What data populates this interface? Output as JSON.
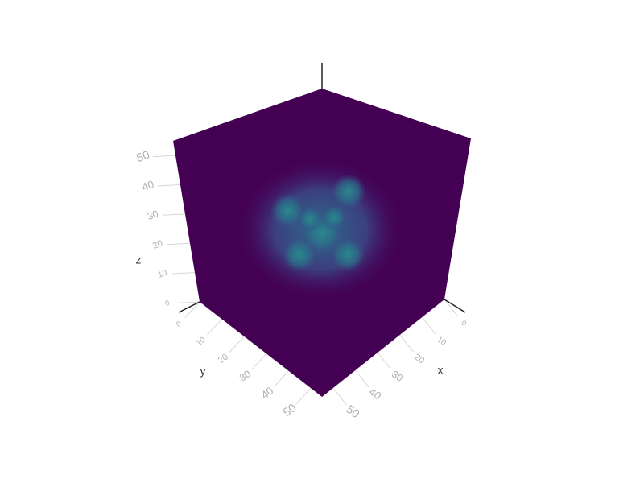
{
  "chart_data": {
    "type": "volume",
    "xaxis_title": "x",
    "yaxis_title": "y",
    "zaxis_title": "z",
    "xlim": [
      0,
      55
    ],
    "ylim": [
      0,
      55
    ],
    "zlim": [
      0,
      55
    ],
    "xticks": [
      0,
      10,
      20,
      30,
      40,
      50
    ],
    "yticks": [
      0,
      10,
      20,
      30,
      40,
      50
    ],
    "zticks": [
      0,
      10,
      20,
      30,
      40,
      50
    ],
    "grid": true
  }
}
